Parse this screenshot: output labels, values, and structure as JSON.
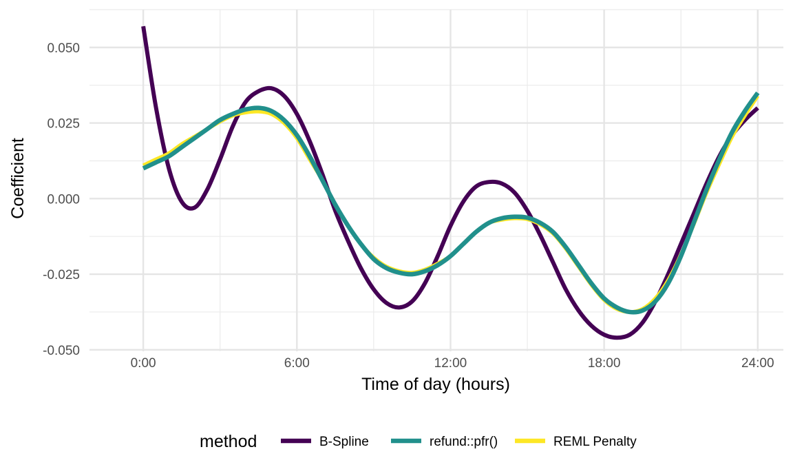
{
  "chart_data": {
    "type": "line",
    "xlabel": "Time of day (hours)",
    "ylabel": "Coefficient",
    "xlim": [
      -2.1,
      25.0
    ],
    "ylim": [
      -0.0505,
      0.0625
    ],
    "x_ticks": [
      {
        "value": 0,
        "label": "0:00"
      },
      {
        "value": 6,
        "label": "6:00"
      },
      {
        "value": 12,
        "label": "12:00"
      },
      {
        "value": 18,
        "label": "18:00"
      },
      {
        "value": 24,
        "label": "24:00"
      }
    ],
    "y_ticks": [
      {
        "value": 0.05,
        "label": "0.050"
      },
      {
        "value": 0.025,
        "label": "0.025"
      },
      {
        "value": 0.0,
        "label": "0.000"
      },
      {
        "value": -0.025,
        "label": "-0.025"
      },
      {
        "value": -0.05,
        "label": "-0.050"
      }
    ],
    "grid": true,
    "legend_position": "bottom",
    "legend_title": "method",
    "series": [
      {
        "name": "B-Spline",
        "color": "#440154",
        "x": [
          0,
          0.5,
          1,
          1.5,
          2,
          2.5,
          3,
          3.5,
          4,
          4.5,
          5,
          5.5,
          6,
          6.5,
          7,
          7.5,
          8,
          8.5,
          9,
          9.5,
          10,
          10.5,
          11,
          11.5,
          12,
          12.5,
          13,
          13.5,
          14,
          14.5,
          15,
          15.5,
          16,
          16.5,
          17,
          17.5,
          18,
          18.5,
          19,
          19.5,
          20,
          20.5,
          21,
          21.5,
          22,
          22.5,
          23,
          23.5,
          24
        ],
        "y": [
          0.057,
          0.03,
          0.01,
          -0.001,
          -0.003,
          0.003,
          0.013,
          0.024,
          0.032,
          0.0355,
          0.0365,
          0.034,
          0.028,
          0.019,
          0.008,
          -0.004,
          -0.014,
          -0.023,
          -0.03,
          -0.0345,
          -0.036,
          -0.034,
          -0.028,
          -0.019,
          -0.009,
          -0.001,
          0.004,
          0.0055,
          0.005,
          0.002,
          -0.004,
          -0.012,
          -0.021,
          -0.03,
          -0.037,
          -0.042,
          -0.045,
          -0.046,
          -0.045,
          -0.041,
          -0.034,
          -0.025,
          -0.015,
          -0.005,
          0.005,
          0.014,
          0.021,
          0.026,
          0.03
        ]
      },
      {
        "name": "refund::pfr()",
        "color": "#21908C",
        "x": [
          0,
          0.5,
          1,
          1.5,
          2,
          2.5,
          3,
          3.5,
          4,
          4.5,
          5,
          5.5,
          6,
          6.5,
          7,
          7.5,
          8,
          8.5,
          9,
          9.5,
          10,
          10.5,
          11,
          11.5,
          12,
          12.5,
          13,
          13.5,
          14,
          14.5,
          15,
          15.5,
          16,
          16.5,
          17,
          17.5,
          18,
          18.5,
          19,
          19.5,
          20,
          20.5,
          21,
          21.5,
          22,
          22.5,
          23,
          23.5,
          24
        ],
        "y": [
          0.01,
          0.012,
          0.014,
          0.017,
          0.02,
          0.023,
          0.026,
          0.028,
          0.0295,
          0.03,
          0.029,
          0.026,
          0.021,
          0.014,
          0.006,
          -0.002,
          -0.009,
          -0.015,
          -0.02,
          -0.023,
          -0.0245,
          -0.025,
          -0.024,
          -0.022,
          -0.019,
          -0.015,
          -0.011,
          -0.008,
          -0.0065,
          -0.006,
          -0.0063,
          -0.008,
          -0.011,
          -0.016,
          -0.022,
          -0.028,
          -0.033,
          -0.036,
          -0.0375,
          -0.037,
          -0.034,
          -0.028,
          -0.019,
          -0.008,
          0.003,
          0.013,
          0.022,
          0.029,
          0.035
        ]
      },
      {
        "name": "REML Penalty",
        "color": "#FDE725",
        "x": [
          0,
          0.5,
          1,
          1.5,
          2,
          2.5,
          3,
          3.5,
          4,
          4.5,
          5,
          5.5,
          6,
          6.5,
          7,
          7.5,
          8,
          8.5,
          9,
          9.5,
          10,
          10.5,
          11,
          11.5,
          12,
          12.5,
          13,
          13.5,
          14,
          14.5,
          15,
          15.5,
          16,
          16.5,
          17,
          17.5,
          18,
          18.5,
          19,
          19.5,
          20,
          20.5,
          21,
          21.5,
          22,
          22.5,
          23,
          23.5,
          24
        ],
        "y": [
          0.011,
          0.013,
          0.015,
          0.018,
          0.0205,
          0.023,
          0.0255,
          0.0275,
          0.0285,
          0.0288,
          0.028,
          0.025,
          0.02,
          0.013,
          0.006,
          -0.002,
          -0.009,
          -0.015,
          -0.0195,
          -0.0225,
          -0.024,
          -0.0245,
          -0.0235,
          -0.0215,
          -0.019,
          -0.015,
          -0.011,
          -0.008,
          -0.007,
          -0.0065,
          -0.0068,
          -0.0085,
          -0.0115,
          -0.0165,
          -0.0225,
          -0.0285,
          -0.0335,
          -0.0365,
          -0.0375,
          -0.0365,
          -0.033,
          -0.027,
          -0.0185,
          -0.0085,
          0.002,
          0.0115,
          0.0205,
          0.0275,
          0.034
        ]
      }
    ]
  }
}
